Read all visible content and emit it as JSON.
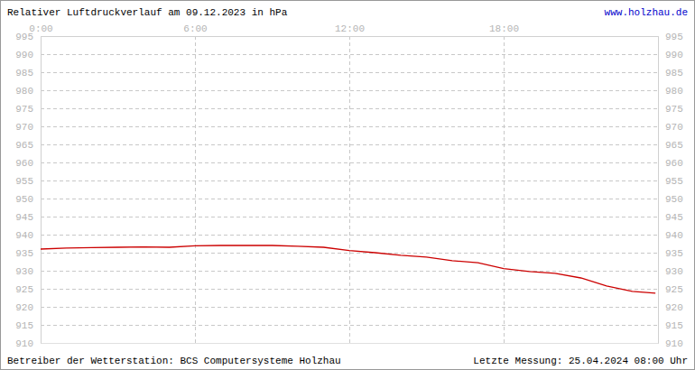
{
  "chart_data": {
    "type": "line",
    "title": "Relativer Luftdruckverlauf am 09.12.2023 in hPa",
    "annotations": [
      "www.holzhau.de",
      "Betreiber der Wetterstation: BCS Computersysteme Holzhau",
      "Letzte Messung: 25.04.2024 08:00 Uhr"
    ],
    "x": [
      0,
      1,
      2,
      3,
      4,
      5,
      6,
      7,
      8,
      9,
      10,
      11,
      12,
      13,
      14,
      15,
      16,
      17,
      18,
      19,
      20,
      21,
      22,
      23,
      23.9
    ],
    "values": [
      936.0,
      936.3,
      936.4,
      936.5,
      936.6,
      936.5,
      936.9,
      937.0,
      937.0,
      937.0,
      936.8,
      936.5,
      935.6,
      935.0,
      934.3,
      933.8,
      932.8,
      932.2,
      930.6,
      929.8,
      929.3,
      928.0,
      925.8,
      924.3,
      923.8
    ],
    "color": "#cc0000",
    "xlim": [
      0,
      24
    ],
    "xticks": [
      {
        "value": 0,
        "label": "0:00"
      },
      {
        "value": 6,
        "label": "6:00"
      },
      {
        "value": 12,
        "label": "12:00"
      },
      {
        "value": 18,
        "label": "18:00"
      }
    ],
    "ylim": [
      910,
      995
    ],
    "yticks": [
      910,
      915,
      920,
      925,
      930,
      935,
      940,
      945,
      950,
      955,
      960,
      965,
      970,
      975,
      980,
      985,
      990,
      995
    ],
    "grid": true
  }
}
